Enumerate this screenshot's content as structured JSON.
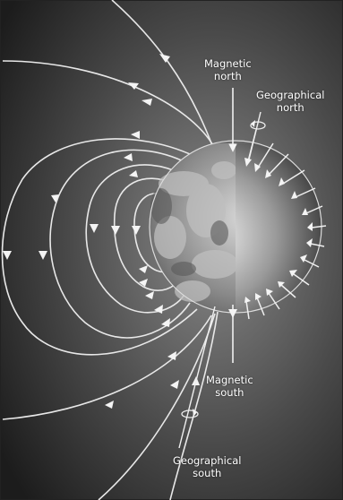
{
  "labels": {
    "magnetic_north": {
      "line1": "Magnetic",
      "line2": "north"
    },
    "geographical_north": {
      "line1": "Geographical",
      "line2": "north"
    },
    "magnetic_south": {
      "line1": "Magnetic",
      "line2": "south"
    },
    "geographical_south": {
      "line1": "Geographical",
      "line2": "south"
    }
  },
  "colors": {
    "background_light": "#8a8a8a",
    "background_dark": "#1c1c1c",
    "field_line": "#e8e8e8",
    "earth_land": "#9a9a9a",
    "earth_shadow": "#2b2b2b"
  },
  "icons": {
    "rotation": "rotation-arrow-icon",
    "field_arrow": "arrowhead-icon"
  }
}
